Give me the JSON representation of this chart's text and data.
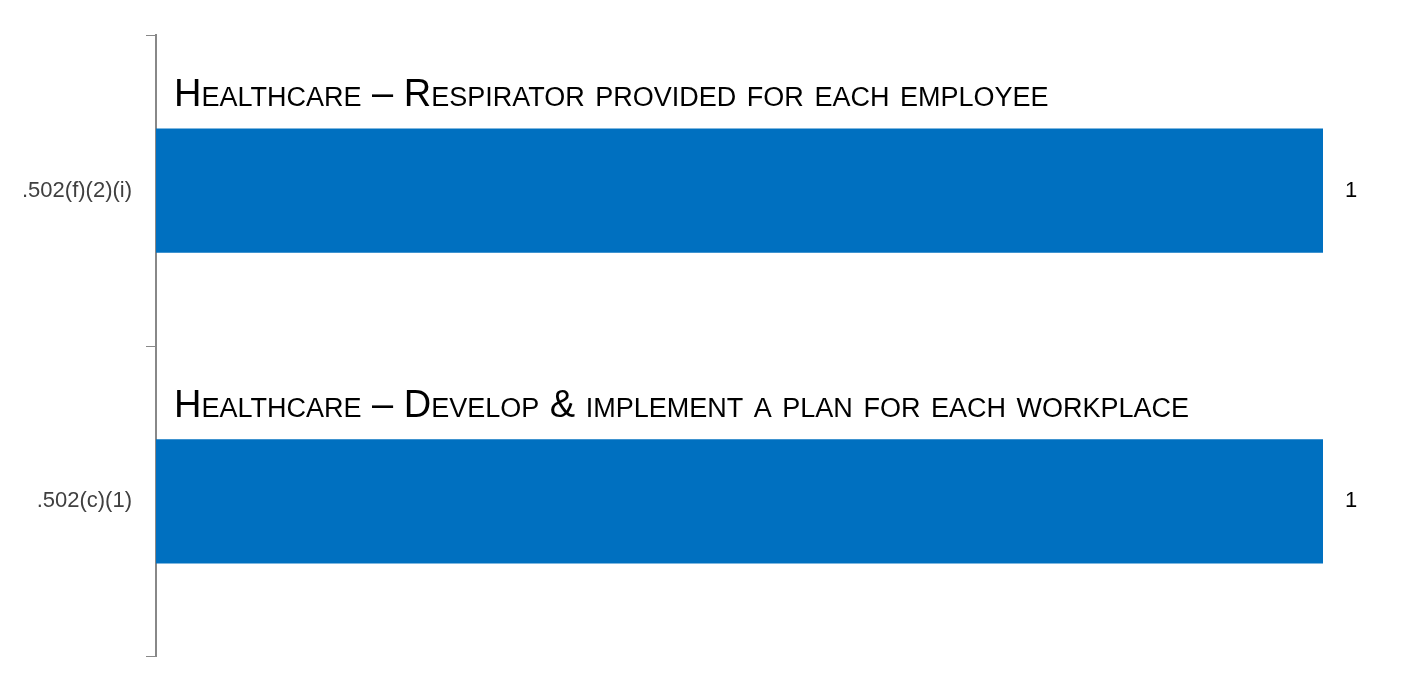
{
  "chart_data": {
    "type": "bar",
    "orientation": "horizontal",
    "categories": [
      ".502(f)(2)(i)",
      ".502(c)(1)"
    ],
    "values": [
      1,
      1
    ],
    "color": "#0070c0",
    "data_labels": true,
    "tick_labels": "y",
    "grid": false,
    "legend": false,
    "annotations": [
      "Healthcare – Respirator provided for each employee",
      "Healthcare – Develop & implement a plan for each workplace"
    ]
  }
}
